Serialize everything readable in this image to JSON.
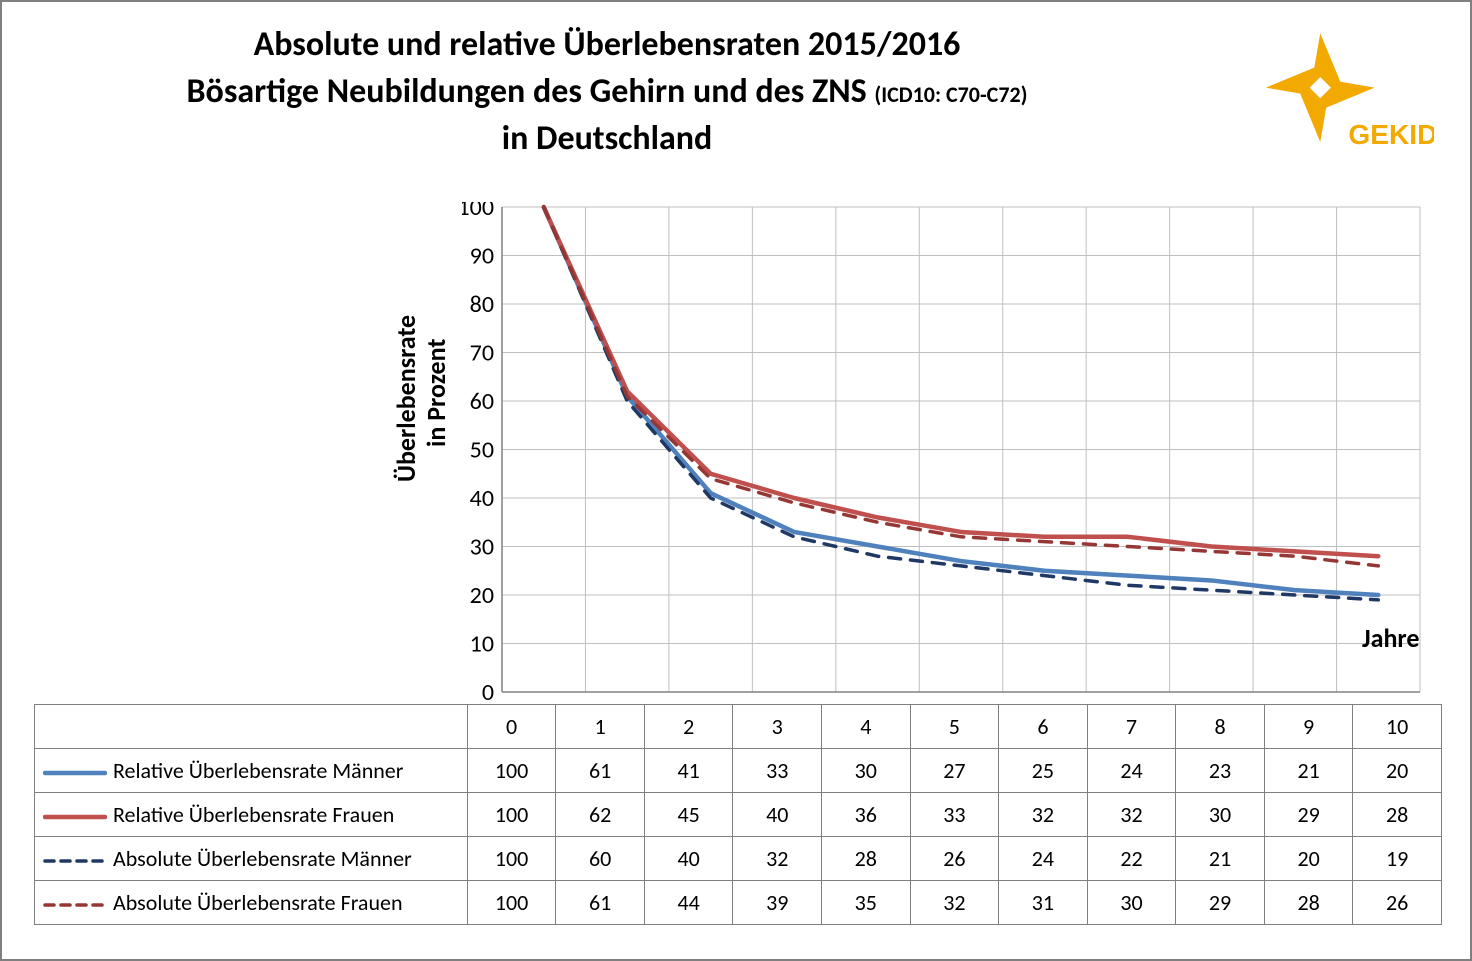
{
  "title": {
    "line1": "Absolute und relative Überlebensraten 2015/2016",
    "line2_main": "Bösartige Neubildungen des Gehirn und des ZNS ",
    "line2_icd": "(ICD10: C70-C72)",
    "line3": "in Deutschland"
  },
  "logo_text": "GEKID",
  "logo_color": "#f2a900",
  "axes": {
    "ylabel_line1": "Überlebensrate",
    "ylabel_line2": "in Prozent",
    "xlabel": "Jahre",
    "ymin": 0,
    "ymax": 100,
    "ytick_step": 10,
    "xmin": 0,
    "xmax": 10,
    "xtick_step": 1,
    "tick_fontsize": 24,
    "grid_color": "#bfbfbf",
    "axis_color": "#808080",
    "background": "#ffffff"
  },
  "series": [
    {
      "key": "rel_m",
      "label": "Relative Überlebensrate Männer",
      "color": "#4f81bd",
      "dash": "solid",
      "width": 4.5,
      "values": [
        100,
        61,
        41,
        33,
        30,
        27,
        25,
        24,
        23,
        21,
        20
      ]
    },
    {
      "key": "rel_f",
      "label": "Relative Überlebensrate Frauen",
      "color": "#c0504d",
      "dash": "solid",
      "width": 4.5,
      "values": [
        100,
        62,
        45,
        40,
        36,
        33,
        32,
        32,
        30,
        29,
        28
      ]
    },
    {
      "key": "abs_m",
      "label": "Absolute Überlebensrate Männer",
      "color": "#1f3864",
      "dash": "dashed",
      "width": 3.5,
      "values": [
        100,
        60,
        40,
        32,
        28,
        26,
        24,
        22,
        21,
        20,
        19
      ]
    },
    {
      "key": "abs_f",
      "label": "Absolute Überlebensrate Frauen",
      "color": "#953735",
      "dash": "dashed",
      "width": 3.5,
      "values": [
        100,
        61,
        44,
        39,
        35,
        32,
        31,
        30,
        29,
        28,
        26
      ]
    }
  ],
  "x_categories": [
    0,
    1,
    2,
    3,
    4,
    5,
    6,
    7,
    8,
    9,
    10
  ]
}
